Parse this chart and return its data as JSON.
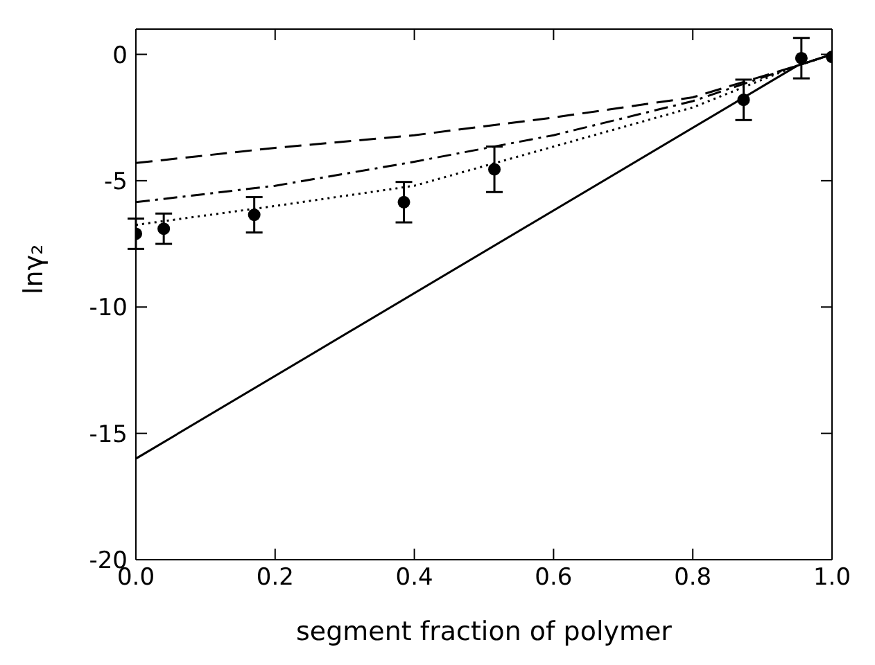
{
  "chart_data": {
    "type": "line",
    "xlabel": "segment fraction of polymer",
    "ylabel": "lnγ₂",
    "xlim": [
      0,
      1
    ],
    "ylim": [
      -20,
      1
    ],
    "xticks": [
      {
        "value": 0,
        "label": "0.0"
      },
      0.2,
      0.4,
      0.6,
      0.8,
      {
        "value": 1,
        "label": "1.0"
      }
    ],
    "yticks": [
      -20,
      -15,
      -10,
      -5,
      0
    ],
    "series": [
      {
        "type": "scatter",
        "color": "#000000",
        "marker": "circle",
        "x": [
          0,
          0.04,
          0.17,
          0.385,
          0.515,
          0.873,
          0.956,
          1
        ],
        "values": [
          -7.1,
          -6.9,
          -6.35,
          -5.85,
          -4.55,
          -1.8,
          -0.15,
          -0.1
        ],
        "errors": [
          0.6,
          0.6,
          0.7,
          0.8,
          0.9,
          0.8,
          0.8,
          null
        ]
      },
      {
        "color": "#000000",
        "line_style": "solid",
        "marker": "none",
        "x": [
          0,
          0.95,
          1
        ],
        "values": [
          -16,
          -0.45,
          0
        ]
      },
      {
        "color": "#000000",
        "line_style": "dashed",
        "marker": "none",
        "x": [
          0,
          0.2,
          0.4,
          0.6,
          0.8,
          0.95,
          1
        ],
        "values": [
          -4.3,
          -3.7,
          -3.2,
          -2.5,
          -1.7,
          -0.45,
          0
        ]
      },
      {
        "color": "#000000",
        "line_style": "dashdot",
        "marker": "none",
        "x": [
          0,
          0.2,
          0.4,
          0.6,
          0.8,
          0.95,
          1
        ],
        "values": [
          -5.85,
          -5.2,
          -4.25,
          -3.2,
          -1.85,
          -0.45,
          0
        ]
      },
      {
        "color": "#000000",
        "line_style": "dotted",
        "marker": "none",
        "x": [
          0,
          0.2,
          0.4,
          0.6,
          0.8,
          0.95,
          1
        ],
        "values": [
          -6.75,
          -6.0,
          -5.2,
          -3.65,
          -2.1,
          -0.45,
          0
        ]
      }
    ]
  }
}
